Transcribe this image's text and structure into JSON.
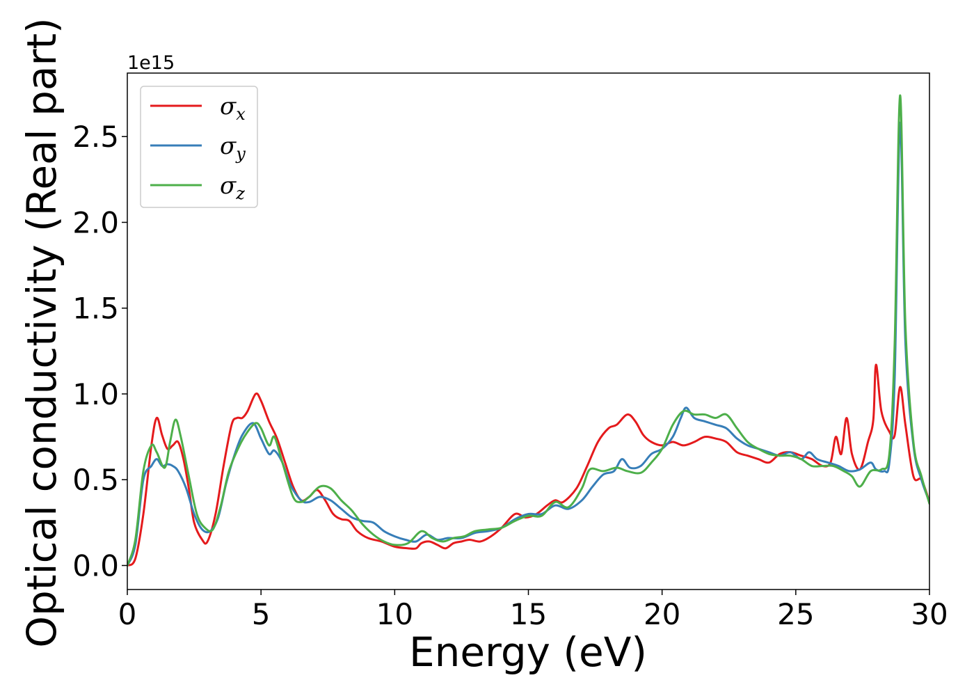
{
  "chart_data": {
    "type": "line",
    "title": "",
    "xlabel": "Energy (eV)",
    "ylabel": "Optical conductivity (Real part)",
    "y_offset_text": "1e15",
    "xlim": [
      0,
      30
    ],
    "ylim": [
      -0.14,
      2.87
    ],
    "x_ticks": [
      0,
      5,
      10,
      15,
      20,
      25,
      30
    ],
    "y_ticks": [
      0.0,
      0.5,
      1.0,
      1.5,
      2.0,
      2.5
    ],
    "x_tick_labels": [
      "0",
      "5",
      "10",
      "15",
      "20",
      "25",
      "30"
    ],
    "y_tick_labels": [
      "0.0",
      "0.5",
      "1.0",
      "1.5",
      "2.0",
      "2.5"
    ],
    "grid": false,
    "legend_position": "top-left",
    "series": [
      {
        "name": "σx",
        "legend_symbol": "σ",
        "legend_sub": "x",
        "color": "#e41a1c",
        "points": [
          [
            0,
            0
          ],
          [
            0.3,
            0.04
          ],
          [
            0.6,
            0.3
          ],
          [
            0.9,
            0.7
          ],
          [
            1.1,
            0.86
          ],
          [
            1.3,
            0.76
          ],
          [
            1.5,
            0.68
          ],
          [
            1.7,
            0.7
          ],
          [
            1.9,
            0.72
          ],
          [
            2.1,
            0.62
          ],
          [
            2.3,
            0.45
          ],
          [
            2.5,
            0.25
          ],
          [
            2.8,
            0.15
          ],
          [
            3.0,
            0.14
          ],
          [
            3.3,
            0.3
          ],
          [
            3.6,
            0.58
          ],
          [
            3.9,
            0.82
          ],
          [
            4.1,
            0.86
          ],
          [
            4.3,
            0.86
          ],
          [
            4.5,
            0.9
          ],
          [
            4.8,
            1.0
          ],
          [
            5.0,
            0.96
          ],
          [
            5.3,
            0.84
          ],
          [
            5.6,
            0.74
          ],
          [
            5.9,
            0.6
          ],
          [
            6.2,
            0.46
          ],
          [
            6.5,
            0.38
          ],
          [
            6.8,
            0.4
          ],
          [
            7.1,
            0.44
          ],
          [
            7.4,
            0.38
          ],
          [
            7.7,
            0.3
          ],
          [
            8.0,
            0.27
          ],
          [
            8.3,
            0.26
          ],
          [
            8.6,
            0.2
          ],
          [
            9.0,
            0.16
          ],
          [
            9.5,
            0.14
          ],
          [
            10.0,
            0.11
          ],
          [
            10.5,
            0.1
          ],
          [
            10.8,
            0.1
          ],
          [
            11.0,
            0.13
          ],
          [
            11.3,
            0.14
          ],
          [
            11.6,
            0.12
          ],
          [
            11.9,
            0.1
          ],
          [
            12.2,
            0.13
          ],
          [
            12.5,
            0.14
          ],
          [
            12.8,
            0.15
          ],
          [
            13.2,
            0.14
          ],
          [
            13.6,
            0.17
          ],
          [
            14.0,
            0.22
          ],
          [
            14.5,
            0.3
          ],
          [
            14.9,
            0.28
          ],
          [
            15.3,
            0.3
          ],
          [
            15.7,
            0.35
          ],
          [
            16.0,
            0.38
          ],
          [
            16.3,
            0.37
          ],
          [
            16.8,
            0.45
          ],
          [
            17.2,
            0.58
          ],
          [
            17.6,
            0.72
          ],
          [
            18.0,
            0.8
          ],
          [
            18.3,
            0.82
          ],
          [
            18.7,
            0.88
          ],
          [
            19.0,
            0.84
          ],
          [
            19.3,
            0.76
          ],
          [
            19.6,
            0.72
          ],
          [
            20.0,
            0.7
          ],
          [
            20.4,
            0.72
          ],
          [
            20.8,
            0.7
          ],
          [
            21.2,
            0.72
          ],
          [
            21.6,
            0.75
          ],
          [
            22.0,
            0.74
          ],
          [
            22.4,
            0.72
          ],
          [
            22.8,
            0.66
          ],
          [
            23.2,
            0.64
          ],
          [
            23.6,
            0.62
          ],
          [
            24.0,
            0.6
          ],
          [
            24.4,
            0.65
          ],
          [
            24.8,
            0.66
          ],
          [
            25.2,
            0.64
          ],
          [
            25.6,
            0.62
          ],
          [
            26.0,
            0.58
          ],
          [
            26.3,
            0.6
          ],
          [
            26.5,
            0.75
          ],
          [
            26.7,
            0.65
          ],
          [
            26.9,
            0.86
          ],
          [
            27.1,
            0.65
          ],
          [
            27.4,
            0.56
          ],
          [
            27.7,
            0.72
          ],
          [
            27.9,
            0.85
          ],
          [
            28.0,
            1.17
          ],
          [
            28.2,
            0.9
          ],
          [
            28.5,
            0.78
          ],
          [
            28.7,
            0.76
          ],
          [
            28.9,
            1.04
          ],
          [
            29.1,
            0.82
          ],
          [
            29.4,
            0.52
          ],
          [
            29.7,
            0.5
          ],
          [
            30.0,
            0.37
          ]
        ]
      },
      {
        "name": "σy",
        "legend_symbol": "σ",
        "legend_sub": "y",
        "color": "#377eb8",
        "points": [
          [
            0,
            0
          ],
          [
            0.3,
            0.12
          ],
          [
            0.6,
            0.5
          ],
          [
            0.9,
            0.58
          ],
          [
            1.1,
            0.62
          ],
          [
            1.3,
            0.58
          ],
          [
            1.5,
            0.59
          ],
          [
            1.7,
            0.58
          ],
          [
            1.9,
            0.55
          ],
          [
            2.2,
            0.45
          ],
          [
            2.5,
            0.3
          ],
          [
            2.8,
            0.21
          ],
          [
            3.1,
            0.2
          ],
          [
            3.4,
            0.28
          ],
          [
            3.7,
            0.48
          ],
          [
            4.0,
            0.64
          ],
          [
            4.3,
            0.76
          ],
          [
            4.7,
            0.83
          ],
          [
            5.0,
            0.74
          ],
          [
            5.3,
            0.65
          ],
          [
            5.5,
            0.67
          ],
          [
            5.8,
            0.6
          ],
          [
            6.1,
            0.47
          ],
          [
            6.5,
            0.38
          ],
          [
            6.8,
            0.37
          ],
          [
            7.2,
            0.4
          ],
          [
            7.6,
            0.38
          ],
          [
            8.0,
            0.33
          ],
          [
            8.4,
            0.28
          ],
          [
            8.8,
            0.26
          ],
          [
            9.2,
            0.25
          ],
          [
            9.6,
            0.2
          ],
          [
            10.0,
            0.17
          ],
          [
            10.4,
            0.15
          ],
          [
            10.8,
            0.14
          ],
          [
            11.2,
            0.18
          ],
          [
            11.6,
            0.15
          ],
          [
            12.0,
            0.16
          ],
          [
            12.5,
            0.16
          ],
          [
            13.0,
            0.19
          ],
          [
            13.5,
            0.2
          ],
          [
            14.0,
            0.22
          ],
          [
            14.5,
            0.27
          ],
          [
            15.0,
            0.3
          ],
          [
            15.5,
            0.3
          ],
          [
            16.0,
            0.35
          ],
          [
            16.5,
            0.33
          ],
          [
            17.0,
            0.38
          ],
          [
            17.4,
            0.46
          ],
          [
            17.8,
            0.53
          ],
          [
            18.2,
            0.55
          ],
          [
            18.5,
            0.62
          ],
          [
            18.8,
            0.57
          ],
          [
            19.2,
            0.58
          ],
          [
            19.6,
            0.65
          ],
          [
            20.0,
            0.68
          ],
          [
            20.4,
            0.75
          ],
          [
            20.7,
            0.86
          ],
          [
            20.9,
            0.92
          ],
          [
            21.2,
            0.86
          ],
          [
            21.6,
            0.84
          ],
          [
            22.0,
            0.82
          ],
          [
            22.4,
            0.8
          ],
          [
            22.8,
            0.74
          ],
          [
            23.2,
            0.7
          ],
          [
            23.6,
            0.68
          ],
          [
            24.0,
            0.66
          ],
          [
            24.4,
            0.64
          ],
          [
            24.8,
            0.66
          ],
          [
            25.2,
            0.62
          ],
          [
            25.5,
            0.66
          ],
          [
            25.8,
            0.62
          ],
          [
            26.2,
            0.6
          ],
          [
            26.6,
            0.58
          ],
          [
            27.0,
            0.55
          ],
          [
            27.4,
            0.56
          ],
          [
            27.8,
            0.6
          ],
          [
            28.0,
            0.56
          ],
          [
            28.3,
            0.55
          ],
          [
            28.5,
            0.6
          ],
          [
            28.7,
            1.1
          ],
          [
            28.9,
            2.58
          ],
          [
            29.1,
            1.3
          ],
          [
            29.4,
            0.7
          ],
          [
            29.7,
            0.5
          ],
          [
            30.0,
            0.37
          ]
        ]
      },
      {
        "name": "σz",
        "legend_symbol": "σ",
        "legend_sub": "z",
        "color": "#4daf4a",
        "points": [
          [
            0,
            0
          ],
          [
            0.3,
            0.15
          ],
          [
            0.6,
            0.55
          ],
          [
            0.9,
            0.7
          ],
          [
            1.1,
            0.66
          ],
          [
            1.4,
            0.57
          ],
          [
            1.6,
            0.72
          ],
          [
            1.8,
            0.85
          ],
          [
            2.0,
            0.75
          ],
          [
            2.3,
            0.52
          ],
          [
            2.6,
            0.3
          ],
          [
            2.9,
            0.22
          ],
          [
            3.2,
            0.21
          ],
          [
            3.5,
            0.35
          ],
          [
            3.8,
            0.55
          ],
          [
            4.2,
            0.7
          ],
          [
            4.5,
            0.78
          ],
          [
            4.8,
            0.83
          ],
          [
            5.0,
            0.8
          ],
          [
            5.3,
            0.7
          ],
          [
            5.5,
            0.75
          ],
          [
            5.8,
            0.6
          ],
          [
            6.2,
            0.4
          ],
          [
            6.5,
            0.37
          ],
          [
            6.8,
            0.4
          ],
          [
            7.2,
            0.46
          ],
          [
            7.6,
            0.45
          ],
          [
            8.0,
            0.38
          ],
          [
            8.4,
            0.32
          ],
          [
            8.8,
            0.24
          ],
          [
            9.2,
            0.18
          ],
          [
            9.6,
            0.14
          ],
          [
            10.0,
            0.12
          ],
          [
            10.5,
            0.13
          ],
          [
            11.0,
            0.2
          ],
          [
            11.4,
            0.16
          ],
          [
            11.8,
            0.14
          ],
          [
            12.2,
            0.16
          ],
          [
            12.6,
            0.17
          ],
          [
            13.0,
            0.2
          ],
          [
            13.5,
            0.21
          ],
          [
            14.0,
            0.22
          ],
          [
            14.5,
            0.26
          ],
          [
            15.0,
            0.29
          ],
          [
            15.5,
            0.29
          ],
          [
            16.0,
            0.37
          ],
          [
            16.5,
            0.34
          ],
          [
            17.0,
            0.45
          ],
          [
            17.3,
            0.56
          ],
          [
            17.8,
            0.55
          ],
          [
            18.3,
            0.57
          ],
          [
            18.7,
            0.55
          ],
          [
            19.2,
            0.54
          ],
          [
            19.6,
            0.6
          ],
          [
            20.0,
            0.68
          ],
          [
            20.4,
            0.82
          ],
          [
            20.8,
            0.9
          ],
          [
            21.2,
            0.88
          ],
          [
            21.6,
            0.88
          ],
          [
            22.0,
            0.86
          ],
          [
            22.4,
            0.88
          ],
          [
            22.8,
            0.8
          ],
          [
            23.2,
            0.72
          ],
          [
            23.6,
            0.68
          ],
          [
            24.0,
            0.65
          ],
          [
            24.4,
            0.64
          ],
          [
            24.8,
            0.64
          ],
          [
            25.2,
            0.62
          ],
          [
            25.6,
            0.58
          ],
          [
            26.0,
            0.58
          ],
          [
            26.4,
            0.58
          ],
          [
            26.8,
            0.55
          ],
          [
            27.1,
            0.52
          ],
          [
            27.4,
            0.46
          ],
          [
            27.8,
            0.55
          ],
          [
            28.2,
            0.56
          ],
          [
            28.5,
            0.65
          ],
          [
            28.7,
            1.3
          ],
          [
            28.9,
            2.74
          ],
          [
            29.1,
            1.4
          ],
          [
            29.4,
            0.72
          ],
          [
            29.7,
            0.52
          ],
          [
            30.0,
            0.36
          ]
        ]
      }
    ]
  }
}
